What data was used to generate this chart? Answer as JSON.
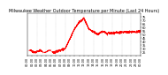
{
  "title": "Milwaukee Weather Outdoor Temperature per Minute (Last 24 Hours)",
  "line_color": "#ff0000",
  "background_color": "#ffffff",
  "grid_color": "#b0b0b0",
  "ylim": [
    20,
    80
  ],
  "yticks": [
    25,
    30,
    35,
    40,
    45,
    50,
    55,
    60,
    65,
    70,
    75
  ],
  "xlim": [
    0,
    1440
  ],
  "title_fontsize": 3.5,
  "tick_fontsize": 2.5,
  "linewidth": 0.5
}
